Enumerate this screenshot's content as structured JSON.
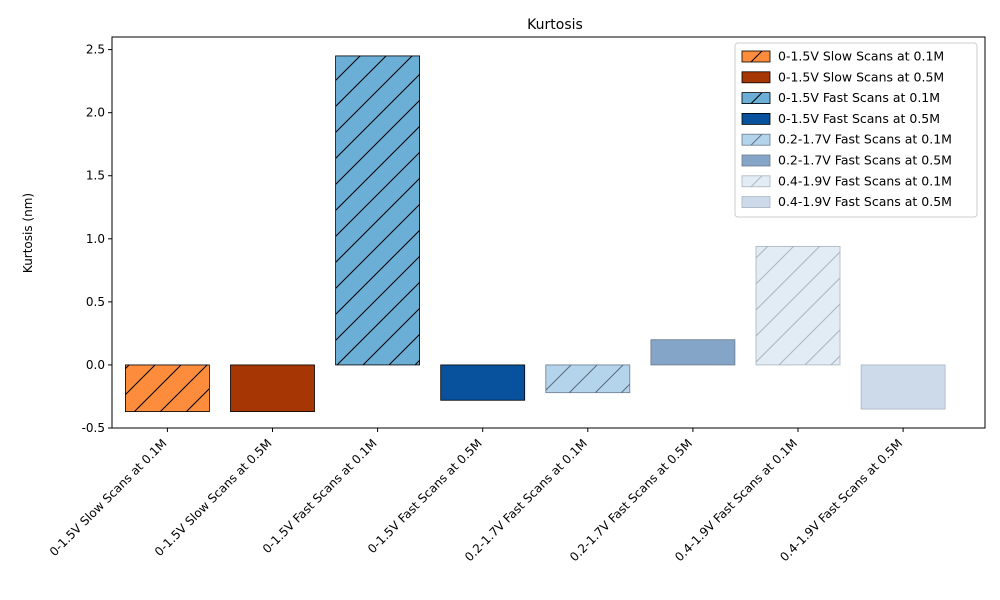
{
  "chart_data": {
    "type": "bar",
    "title": "Kurtosis",
    "xlabel": "",
    "ylabel": "Kurtosis (nm)",
    "ylim": [
      -0.5,
      2.6
    ],
    "yticks": [
      -0.5,
      0.0,
      0.5,
      1.0,
      1.5,
      2.0,
      2.5
    ],
    "grid": false,
    "legend_position": "top-right",
    "categories": [
      "0-1.5V Slow Scans at 0.1M",
      "0-1.5V Slow Scans at 0.5M",
      "0-1.5V Fast Scans at 0.1M",
      "0-1.5V Fast Scans at 0.5M",
      "0.2-1.7V Fast Scans at 0.1M",
      "0.2-1.7V Fast Scans at 0.5M",
      "0.4-1.9V Fast Scans at 0.1M",
      "0.4-1.9V Fast Scans at 0.5M"
    ],
    "values": [
      -0.37,
      -0.37,
      2.45,
      -0.28,
      -0.22,
      0.2,
      0.94,
      -0.35
    ],
    "colors": [
      "#fd8d3c",
      "#a63603",
      "#6baed6",
      "#08519c",
      "#b3d4ea",
      "#84a4c8",
      "#e1ecf5",
      "#ccdaea"
    ],
    "hatched": [
      true,
      false,
      true,
      false,
      true,
      false,
      true,
      false
    ],
    "legend": [
      "0-1.5V Slow Scans at 0.1M",
      "0-1.5V Slow Scans at 0.5M",
      "0-1.5V Fast Scans at 0.1M",
      "0-1.5V Fast Scans at 0.5M",
      "0.2-1.7V Fast Scans at 0.1M",
      "0.2-1.7V Fast Scans at 0.5M",
      "0.4-1.9V Fast Scans at 0.1M",
      "0.4-1.9V Fast Scans at 0.5M"
    ]
  }
}
